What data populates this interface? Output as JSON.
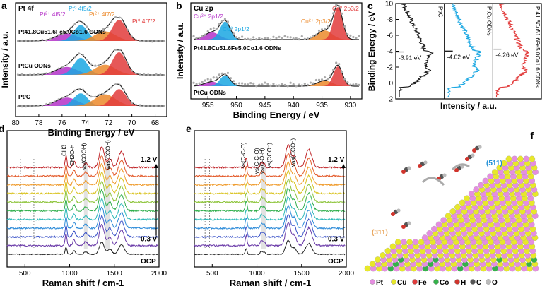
{
  "panels": {
    "a": {
      "letter": "a",
      "header": "Pt 4f",
      "peaks": [
        {
          "label": "Pt²⁺ 4f5/2",
          "color": "#b431c8"
        },
        {
          "label": "Pt⁰ 4f5/2",
          "color": "#1aa7e2"
        },
        {
          "label": "Pt²⁺ 4f7/2",
          "color": "#ec8a2c"
        },
        {
          "label": "Pt⁰ 4f7/2",
          "color": "#e23b3b"
        }
      ],
      "spectra": [
        "Pt41.8Cu51.6Fe5.0Co1.6 ODNs",
        "PtCu ODNs",
        "Pt/C"
      ]
    },
    "b": {
      "letter": "b",
      "header": "Cu 2p",
      "peaks": [
        {
          "label": "Cu²⁺ 2p1/2",
          "color": "#b431c8"
        },
        {
          "label": "Cu⁰ 2p1/2",
          "color": "#1aa7e2"
        },
        {
          "label": "Cu²⁺ 2p3/2",
          "color": "#ec8a2c"
        },
        {
          "label": "Cu⁰ 2p3/2",
          "color": "#e23b3b"
        }
      ],
      "spectra": [
        "Pt41.8Cu51.6Fe5.0Co1.6 ODNs",
        "PtCu ODNs"
      ]
    },
    "c": {
      "letter": "c",
      "traces": [
        {
          "name": "Pt/C",
          "value": "-3.91 eV",
          "color": "#1a1a1a"
        },
        {
          "name": "PtCu ODNs",
          "value": "-4.02 eV",
          "color": "#1aa7e2"
        },
        {
          "name": "Pt41.8Cu51.6Fe5.0Co1.6 ODNs",
          "value": "-4.26 eV",
          "color": "#e23b3b"
        }
      ]
    },
    "d": {
      "letter": "d",
      "bands": [
        "CH3",
        "CH2O-H",
        "vs(COOH)",
        "vas(COOH)"
      ],
      "top_label": "1.2 V",
      "bottom_label": "0.3 V",
      "ocp_label": "OCP"
    },
    "e": {
      "letter": "e",
      "bands": [
        "vs(C-C-O)",
        "vs(C-C-O)",
        "vs(C-O-H)",
        "vs(COO⁻)",
        "vas(COO⁻)"
      ],
      "top_label": "1.2 V",
      "bottom_label": "0.3 V",
      "ocp_label": "OCP"
    },
    "f": {
      "letter": "f",
      "facet_511": "(511)",
      "facet_311": "(311)",
      "legend": [
        {
          "symbol": "Pt",
          "color": "#e58ee0"
        },
        {
          "symbol": "Cu",
          "color": "#e8e82a"
        },
        {
          "symbol": "Fe",
          "color": "#e03b3b"
        },
        {
          "symbol": "Co",
          "color": "#34b24a"
        },
        {
          "symbol": "H",
          "color": "#d0342c"
        },
        {
          "symbol": "C",
          "color": "#555555"
        },
        {
          "symbol": "O",
          "color": "#bbbbbb"
        }
      ]
    }
  },
  "chart_data": [
    {
      "id": "a",
      "type": "line",
      "title": "Pt 4f",
      "xlabel": "Binding Energy / eV",
      "ylabel": "Intensity / a.u.",
      "xlim": [
        80,
        67
      ],
      "xticks": [
        80,
        78,
        76,
        74,
        72,
        70,
        68
      ],
      "peak_positions_eV": {
        "Pt0 4f7/2": 71.1,
        "Pt0 4f5/2": 74.4,
        "Pt2+ 4f7/2": 72.3,
        "Pt2+ 4f5/2": 75.6
      },
      "series": [
        "Pt41.8Cu51.6Fe5.0Co1.6 ODNs",
        "PtCu ODNs",
        "Pt/C"
      ]
    },
    {
      "id": "b",
      "type": "line",
      "title": "Cu 2p",
      "xlabel": "Binding Energy / eV",
      "ylabel": "Intensity / a.u.",
      "xlim": [
        958,
        928
      ],
      "xticks": [
        955,
        950,
        945,
        940,
        935,
        930
      ],
      "peak_positions_eV": {
        "Cu0 2p3/2": 932.2,
        "Cu0 2p1/2": 952.0,
        "Cu2+ 2p3/2": 934.5,
        "Cu2+ 2p1/2": 954.3
      },
      "series": [
        "Pt41.8Cu51.6Fe5.0Co1.6 ODNs",
        "PtCu ODNs"
      ]
    },
    {
      "id": "c",
      "type": "line",
      "xlabel": "Intensity / a.u.",
      "ylabel": "Binding Energy / eV",
      "ylim": [
        -10,
        2
      ],
      "yticks": [
        -10,
        -8,
        -6,
        -4,
        -2,
        0,
        2
      ],
      "d_band_centers_eV": {
        "Pt/C": -3.91,
        "PtCu ODNs": -4.02,
        "Pt41.8Cu51.6Fe5.0Co1.6 ODNs": -4.26
      }
    },
    {
      "id": "d",
      "type": "line",
      "xlabel": "Raman shift / cm-1",
      "xlim": [
        300,
        2000
      ],
      "xticks": [
        500,
        1000,
        1500,
        2000
      ],
      "potentials_V": [
        1.2,
        1.1,
        1.0,
        0.9,
        0.8,
        0.7,
        0.6,
        0.5,
        0.4,
        0.3
      ],
      "reference": "OCP",
      "band_positions_cm-1": [
        960,
        1050,
        1180,
        1360,
        1450,
        1580
      ]
    },
    {
      "id": "e",
      "type": "line",
      "xlabel": "Raman shift / cm-1",
      "xlim": [
        300,
        2000
      ],
      "xticks": [
        500,
        1000,
        1500,
        2000
      ],
      "potentials_V": [
        1.2,
        1.1,
        1.0,
        0.9,
        0.8,
        0.7,
        0.6,
        0.5,
        0.4,
        0.3
      ],
      "reference": "OCP",
      "band_positions_cm-1": [
        880,
        1050,
        1080,
        1350,
        1420,
        1580
      ]
    }
  ]
}
